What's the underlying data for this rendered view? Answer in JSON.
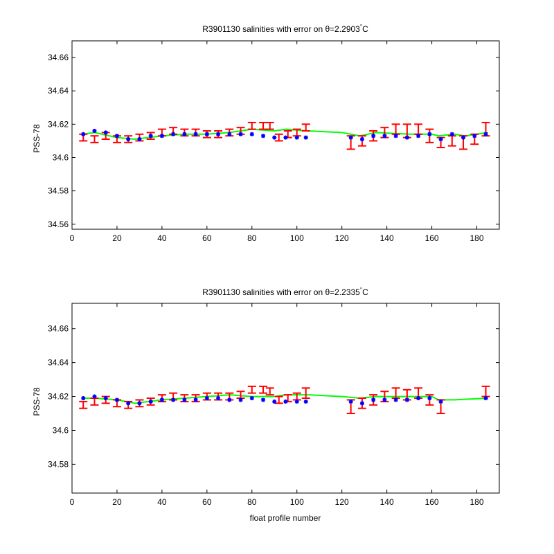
{
  "charts": [
    {
      "title": "R3901130 salinities with error on θ=2.2903",
      "title_superscript": "°",
      "title_unit": "C",
      "ylabel": "PSS-78",
      "xlabel": "",
      "xlim": [
        0,
        190
      ],
      "ylim": [
        34.557,
        34.67
      ],
      "xticks": [
        0,
        20,
        40,
        60,
        80,
        100,
        120,
        140,
        160,
        180
      ],
      "yticks": [
        34.56,
        34.58,
        34.6,
        34.62,
        34.64,
        34.66
      ],
      "ytick_labels": [
        "34.56",
        "34.58",
        "34.6",
        "34.62",
        "34.64",
        "34.66"
      ]
    },
    {
      "title": "R3901130 salinities with error on θ=2.2335",
      "title_superscript": "°",
      "title_unit": "C",
      "ylabel": "PSS-78",
      "xlabel": "float profile number",
      "xlim": [
        0,
        190
      ],
      "ylim": [
        34.563,
        34.675
      ],
      "xticks": [
        0,
        20,
        40,
        60,
        80,
        100,
        120,
        140,
        160,
        180
      ],
      "yticks": [
        34.58,
        34.6,
        34.62,
        34.64,
        34.66
      ],
      "ytick_labels": [
        "34.58",
        "34.6",
        "34.62",
        "34.64",
        "34.66"
      ]
    }
  ],
  "chart_data": [
    {
      "type": "line",
      "title": "R3901130 salinities with error on θ=2.2903°C",
      "ylabel": "PSS-78",
      "xlabel": "",
      "xlim": [
        0,
        190
      ],
      "ylim": [
        34.557,
        34.67
      ],
      "colors": {
        "green": "#00ff00",
        "red": "#ff0000",
        "blue": "#0000ff"
      },
      "series": [
        {
          "style": "green-line",
          "x": [
            5,
            10,
            20,
            28,
            40,
            50,
            60,
            70,
            80,
            90,
            95,
            105,
            120,
            128,
            135,
            150,
            160,
            163,
            170,
            175,
            185
          ],
          "y": [
            34.614,
            34.615,
            34.612,
            34.611,
            34.613,
            34.614,
            34.614,
            34.615,
            34.617,
            34.616,
            34.617,
            34.616,
            34.615,
            34.613,
            34.615,
            34.614,
            34.614,
            34.613,
            34.614,
            34.613,
            34.615
          ]
        },
        {
          "style": "red-errorbar",
          "x": [
            5,
            10,
            15,
            20,
            25,
            30,
            35,
            40,
            45,
            50,
            55,
            60,
            65,
            70,
            75,
            80,
            85,
            88,
            92,
            96,
            100,
            104,
            124,
            129,
            134,
            139,
            144,
            149,
            154,
            159,
            164,
            169,
            174,
            179,
            184
          ],
          "y": [
            34.612,
            34.611,
            34.613,
            34.611,
            34.611,
            34.612,
            34.613,
            34.615,
            34.616,
            34.615,
            34.615,
            34.614,
            34.614,
            34.615,
            34.616,
            34.619,
            34.619,
            34.619,
            34.612,
            34.614,
            34.615,
            34.618,
            34.609,
            34.61,
            34.613,
            34.615,
            34.617,
            34.616,
            34.617,
            34.613,
            34.609,
            34.61,
            34.609,
            34.611,
            34.617
          ],
          "err": [
            0.002,
            0.002,
            0.002,
            0.002,
            0.002,
            0.002,
            0.002,
            0.002,
            0.002,
            0.002,
            0.002,
            0.002,
            0.002,
            0.002,
            0.002,
            0.002,
            0.002,
            0.002,
            0.002,
            0.002,
            0.002,
            0.002,
            0.004,
            0.003,
            0.003,
            0.003,
            0.003,
            0.004,
            0.003,
            0.004,
            0.003,
            0.003,
            0.004,
            0.003,
            0.004
          ]
        },
        {
          "style": "blue-star",
          "x": [
            5,
            10,
            15,
            20,
            25,
            30,
            35,
            40,
            45,
            50,
            55,
            60,
            65,
            70,
            75,
            80,
            85,
            90,
            95,
            100,
            104,
            124,
            129,
            134,
            139,
            144,
            149,
            154,
            159,
            164,
            169,
            174,
            179,
            184
          ],
          "y": [
            34.614,
            34.616,
            34.615,
            34.613,
            34.611,
            34.611,
            34.613,
            34.613,
            34.614,
            34.614,
            34.614,
            34.614,
            34.614,
            34.614,
            34.614,
            34.614,
            34.613,
            34.612,
            34.612,
            34.612,
            34.612,
            34.612,
            34.611,
            34.613,
            34.613,
            34.613,
            34.612,
            34.613,
            34.614,
            34.611,
            34.614,
            34.612,
            34.613,
            34.614
          ]
        }
      ]
    },
    {
      "type": "line",
      "title": "R3901130 salinities with error on θ=2.2335°C",
      "ylabel": "PSS-78",
      "xlabel": "float profile number",
      "xlim": [
        0,
        190
      ],
      "ylim": [
        34.563,
        34.675
      ],
      "colors": {
        "green": "#00ff00",
        "red": "#ff0000",
        "blue": "#0000ff"
      },
      "series": [
        {
          "style": "green-line",
          "x": [
            5,
            10,
            20,
            28,
            40,
            50,
            60,
            70,
            80,
            90,
            95,
            105,
            120,
            128,
            135,
            150,
            160,
            163,
            170,
            185
          ],
          "y": [
            34.619,
            34.619,
            34.618,
            34.616,
            34.618,
            34.619,
            34.62,
            34.621,
            34.62,
            34.62,
            34.621,
            34.621,
            34.62,
            34.619,
            34.62,
            34.62,
            34.62,
            34.618,
            34.618,
            34.619
          ]
        },
        {
          "style": "red-errorbar",
          "x": [
            5,
            10,
            15,
            20,
            25,
            30,
            35,
            40,
            45,
            50,
            55,
            60,
            65,
            70,
            75,
            80,
            85,
            88,
            92,
            96,
            100,
            104,
            124,
            129,
            134,
            139,
            144,
            149,
            154,
            159,
            164,
            184
          ],
          "y": [
            34.615,
            34.617,
            34.618,
            34.616,
            34.615,
            34.616,
            34.617,
            34.619,
            34.62,
            34.619,
            34.619,
            34.62,
            34.62,
            34.62,
            34.621,
            34.624,
            34.624,
            34.623,
            34.618,
            34.619,
            34.62,
            34.622,
            34.614,
            34.616,
            34.618,
            34.62,
            34.622,
            34.621,
            34.622,
            34.618,
            34.614,
            34.623
          ],
          "err": [
            0.002,
            0.002,
            0.002,
            0.002,
            0.002,
            0.002,
            0.002,
            0.002,
            0.002,
            0.002,
            0.002,
            0.002,
            0.002,
            0.002,
            0.002,
            0.002,
            0.002,
            0.002,
            0.002,
            0.002,
            0.002,
            0.003,
            0.004,
            0.003,
            0.003,
            0.003,
            0.003,
            0.003,
            0.003,
            0.003,
            0.004,
            0.003
          ]
        },
        {
          "style": "blue-star",
          "x": [
            5,
            10,
            15,
            20,
            25,
            30,
            35,
            40,
            45,
            50,
            55,
            60,
            65,
            70,
            75,
            80,
            85,
            90,
            95,
            100,
            104,
            124,
            129,
            134,
            139,
            144,
            149,
            154,
            159,
            164,
            184
          ],
          "y": [
            34.619,
            34.62,
            34.619,
            34.618,
            34.616,
            34.616,
            34.617,
            34.618,
            34.618,
            34.618,
            34.618,
            34.619,
            34.619,
            34.618,
            34.618,
            34.619,
            34.618,
            34.617,
            34.617,
            34.617,
            34.617,
            34.617,
            34.616,
            34.618,
            34.618,
            34.618,
            34.618,
            34.619,
            34.619,
            34.617,
            34.619
          ]
        }
      ]
    }
  ]
}
